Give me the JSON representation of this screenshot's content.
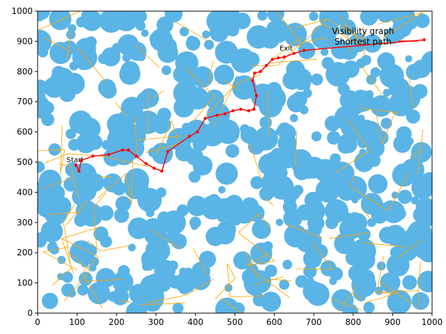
{
  "chart_data": {
    "type": "line",
    "title": "",
    "xlabel": "",
    "ylabel": "",
    "xlim": [
      0,
      1000
    ],
    "ylim": [
      0,
      1000
    ],
    "xticks": [
      0,
      100,
      200,
      300,
      400,
      500,
      600,
      700,
      800,
      900,
      1000
    ],
    "yticks": [
      0,
      100,
      200,
      300,
      400,
      500,
      600,
      700,
      800,
      900,
      1000
    ],
    "grid": false,
    "legend": {
      "placement": "top-right",
      "entries": [
        "Visibility graph",
        "Shortest path"
      ]
    },
    "annotations": [
      {
        "text": "Exit",
        "x": 630,
        "y": 870
      },
      {
        "text": "Start",
        "x": 95,
        "y": 500
      }
    ],
    "colors": {
      "obstacle": "#5ab4e6",
      "visibility_graph": "#ffa500",
      "shortest_path": "#ff0000",
      "background": "#ffffff"
    },
    "series": [
      {
        "name": "Shortest path",
        "x": [
          97,
          105,
          110,
          140,
          180,
          215,
          230,
          250,
          275,
          295,
          315,
          330,
          385,
          405,
          425,
          455,
          475,
          495,
          515,
          535,
          548,
          555,
          545,
          550,
          565,
          580,
          595,
          610,
          625,
          650,
          675,
          980
        ],
        "y": [
          490,
          470,
          505,
          520,
          525,
          540,
          540,
          520,
          495,
          480,
          470,
          535,
          585,
          600,
          645,
          655,
          660,
          670,
          675,
          670,
          675,
          720,
          770,
          795,
          800,
          820,
          840,
          845,
          848,
          860,
          870,
          905
        ]
      }
    ]
  }
}
